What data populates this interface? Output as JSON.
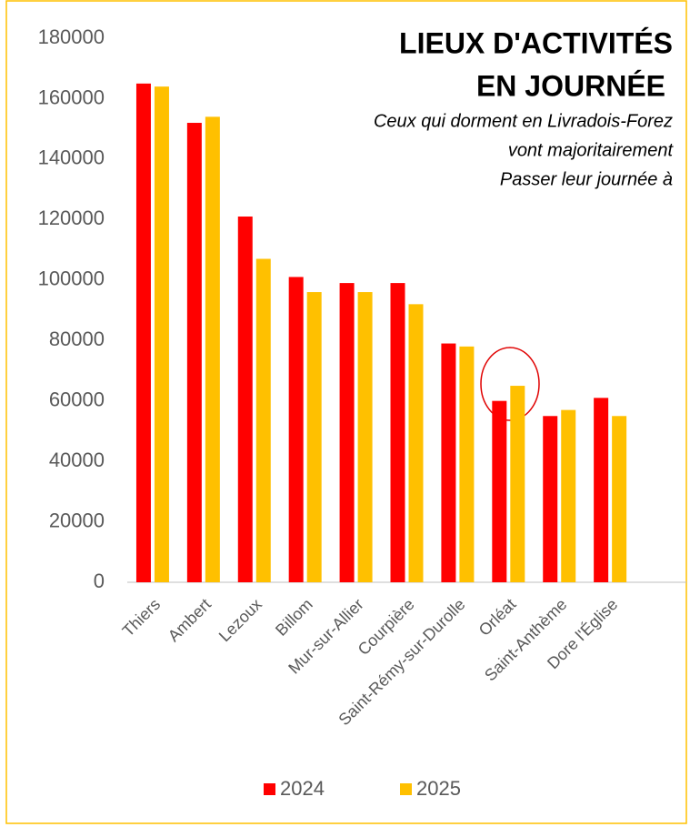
{
  "chart_data": {
    "type": "bar",
    "title": [
      "LIEUX D'ACTIVITÉS",
      "EN JOURNÉE"
    ],
    "subtitle": [
      "Ceux qui dorment en Livradois-Forez",
      "vont majoritairement",
      "Passer leur journée à"
    ],
    "categories": [
      "Thiers",
      "Ambert",
      "Lezoux",
      "Billom",
      "Mur-sur-Allier",
      "Courpière",
      "Saint-Rémy-sur-Durolle",
      "Orléat",
      "Saint-Anthème",
      "Dore l'Église",
      null
    ],
    "series": [
      {
        "name": "2024",
        "color": "#ff0000",
        "values": [
          165000,
          152000,
          121000,
          101000,
          99000,
          99000,
          79000,
          60000,
          55000,
          61000,
          null
        ]
      },
      {
        "name": "2025",
        "color": "#ffc000",
        "values": [
          164000,
          154000,
          107000,
          96000,
          96000,
          92000,
          78000,
          65000,
          57000,
          55000,
          null
        ]
      }
    ],
    "ylim": [
      0,
      180000
    ],
    "yticks": [
      0,
      20000,
      40000,
      60000,
      80000,
      100000,
      120000,
      140000,
      160000,
      180000
    ],
    "legend": "bottom"
  }
}
